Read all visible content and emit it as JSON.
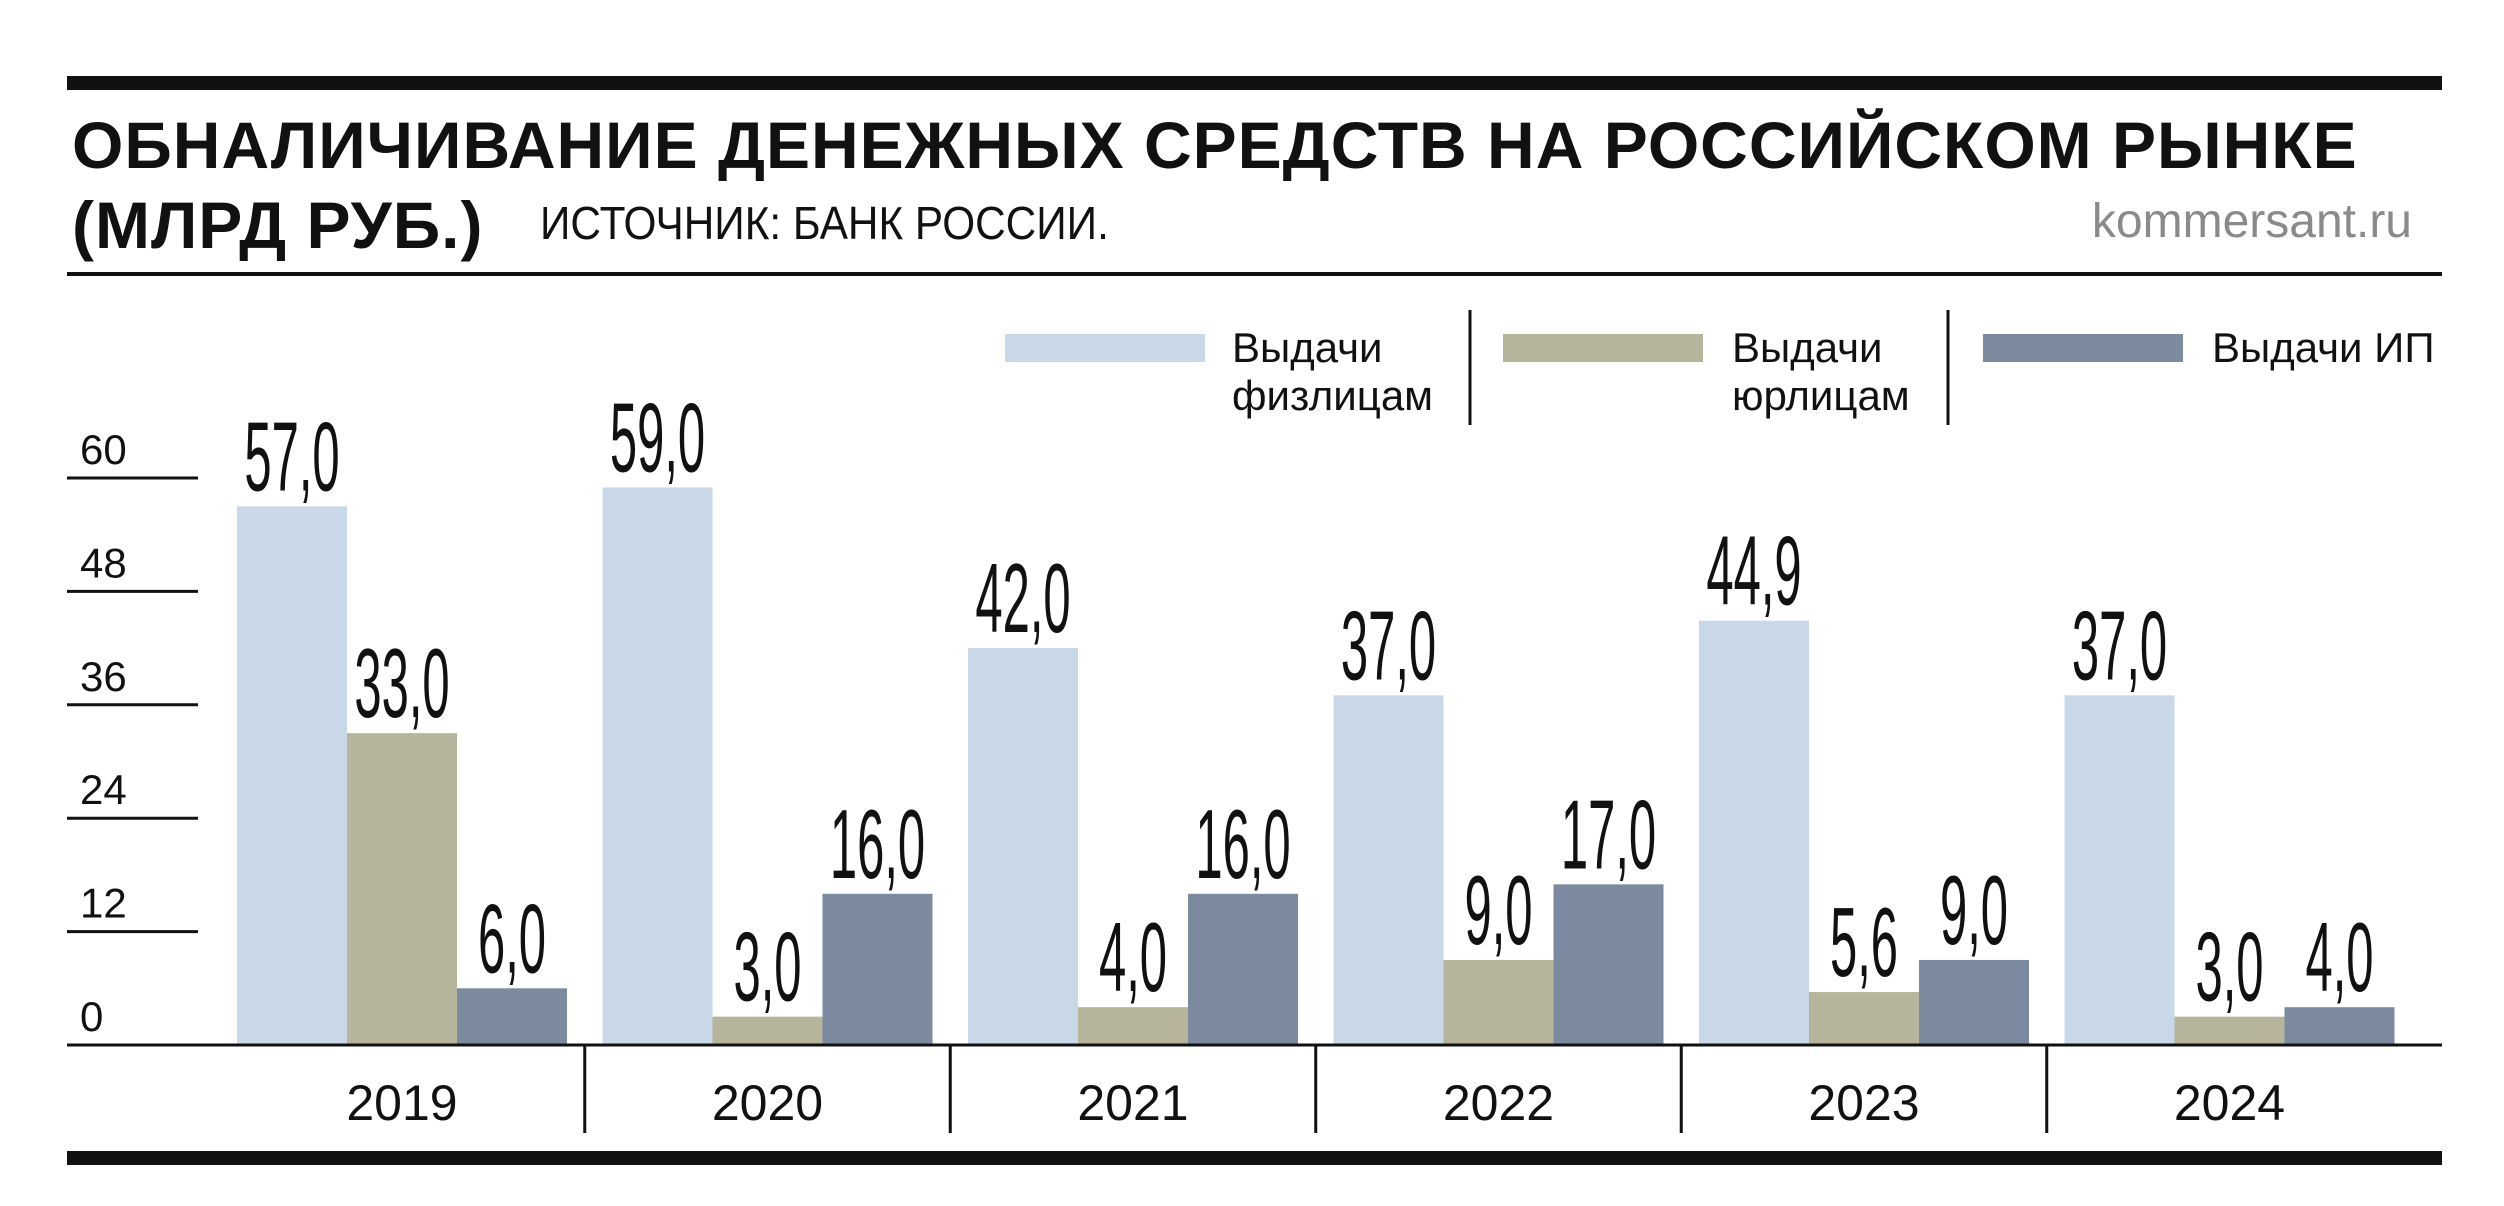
{
  "header": {
    "title": "ОБНАЛИЧИВАНИЕ ДЕНЕЖНЫХ СРЕДСТВ НА РОССИЙСКОМ РЫНКЕ",
    "unit": "(МЛРД РУБ.)",
    "source": "ИСТОЧНИК: БАНК РОССИИ.",
    "brand": "kommersant.ru"
  },
  "chart_data": {
    "type": "bar",
    "title": "ОБНАЛИЧИВАНИЕ ДЕНЕЖНЫХ СРЕДСТВ НА РОССИЙСКОМ РЫНКЕ",
    "ylabel": "(МЛРД РУБ.)",
    "xlabel": "",
    "categories": [
      "2019",
      "2020",
      "2021",
      "2022",
      "2023",
      "2024"
    ],
    "series": [
      {
        "name": "Выдачи физлицам",
        "legend_lines": [
          "Выдачи",
          "физлицам"
        ],
        "color": "#c8d8e8",
        "values": [
          57.0,
          59.0,
          42.0,
          37.0,
          44.9,
          37.0
        ],
        "labels": [
          "57,0",
          "59,0",
          "42,0",
          "37,0",
          "44,9",
          "37,0"
        ]
      },
      {
        "name": "Выдачи юрлицам",
        "legend_lines": [
          "Выдачи",
          "юрлицам"
        ],
        "color": "#b6b59b",
        "values": [
          33.0,
          3.0,
          4.0,
          9.0,
          5.6,
          3.0
        ],
        "labels": [
          "33,0",
          "3,0",
          "4,0",
          "9,0",
          "5,6",
          "3,0"
        ]
      },
      {
        "name": "Выдачи ИП",
        "legend_lines": [
          "Выдачи ИП"
        ],
        "color": "#7b8a9f",
        "values": [
          6.0,
          16.0,
          16.0,
          17.0,
          9.0,
          4.0
        ],
        "labels": [
          "6,0",
          "16,0",
          "16,0",
          "17,0",
          "9,0",
          "4,0"
        ]
      }
    ],
    "yticks": [
      0,
      12,
      24,
      36,
      48,
      60
    ],
    "ylim": [
      0,
      60
    ],
    "grid": false,
    "legend_position": "top-right"
  }
}
